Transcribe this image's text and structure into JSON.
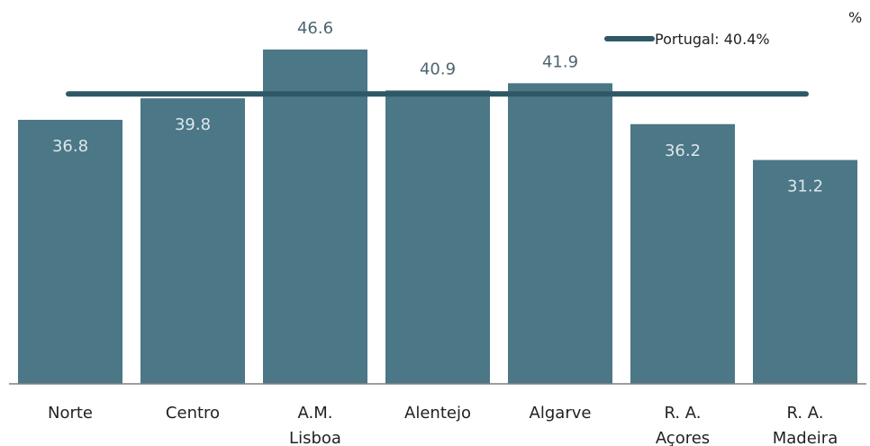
{
  "chart_data": {
    "type": "bar",
    "unit": "%",
    "categories": [
      "Norte",
      "Centro",
      "A.M. Lisboa",
      "Alentejo",
      "Algarve",
      "R. A. Açores",
      "R. A. Madeira"
    ],
    "category_lines": [
      [
        "Norte"
      ],
      [
        "Centro"
      ],
      [
        "A.M.",
        "Lisboa"
      ],
      [
        "Alentejo"
      ],
      [
        "Algarve"
      ],
      [
        "R. A.",
        "Açores"
      ],
      [
        "R. A.",
        "Madeira"
      ]
    ],
    "values": [
      36.8,
      39.8,
      46.6,
      40.9,
      41.9,
      36.2,
      31.2
    ],
    "value_labels": [
      "36.8",
      "39.8",
      "46.6",
      "40.9",
      "41.9",
      "36.2",
      "31.2"
    ],
    "reference_line": {
      "name": "Portugal: 40.4%",
      "value": 40.4
    },
    "ylim": [
      0,
      53.5
    ],
    "grid": false,
    "legend_position": "top-right",
    "colors": {
      "bar": "#4b7787",
      "line": "#2f5866",
      "label_inside": "#dde7ea",
      "label_outside": "#4b6570",
      "axis": "#7f7f7f"
    }
  }
}
